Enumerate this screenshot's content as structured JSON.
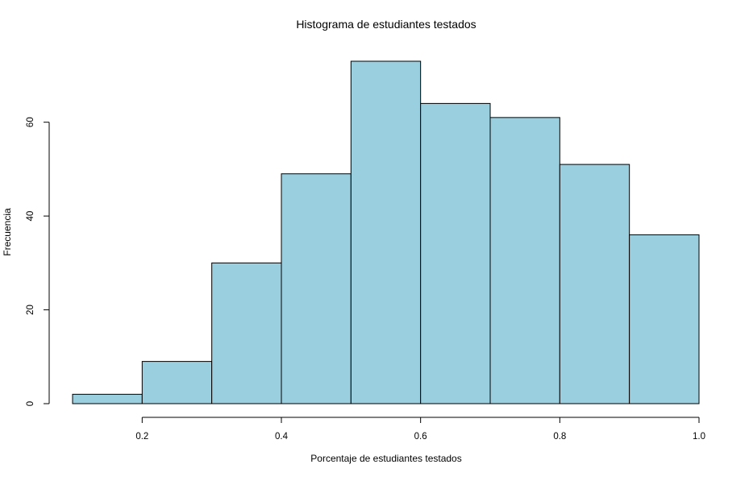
{
  "chart_data": {
    "type": "bar",
    "subtype": "histogram",
    "title": "Histograma de estudiantes testados",
    "xlabel": "Porcentaje de estudiantes testados",
    "ylabel": "Frecuencia",
    "bins": [
      {
        "from": 0.1,
        "to": 0.2,
        "count": 2
      },
      {
        "from": 0.2,
        "to": 0.3,
        "count": 9
      },
      {
        "from": 0.3,
        "to": 0.4,
        "count": 30
      },
      {
        "from": 0.4,
        "to": 0.5,
        "count": 49
      },
      {
        "from": 0.5,
        "to": 0.6,
        "count": 73
      },
      {
        "from": 0.6,
        "to": 0.7,
        "count": 64
      },
      {
        "from": 0.7,
        "to": 0.8,
        "count": 61
      },
      {
        "from": 0.8,
        "to": 0.9,
        "count": 51
      },
      {
        "from": 0.9,
        "to": 1.0,
        "count": 36
      }
    ],
    "xlim": [
      0.1,
      1.0
    ],
    "ylim": [
      0,
      73
    ],
    "x_ticks": [
      0.2,
      0.4,
      0.6,
      0.8,
      1.0
    ],
    "x_tick_labels": [
      "0.2",
      "0.4",
      "0.6",
      "0.8",
      "1.0"
    ],
    "y_ticks": [
      0,
      20,
      40,
      60
    ],
    "y_tick_labels": [
      "0",
      "20",
      "40",
      "60"
    ],
    "bar_color": "#9ACFE0",
    "grid": false,
    "legend": "none"
  }
}
